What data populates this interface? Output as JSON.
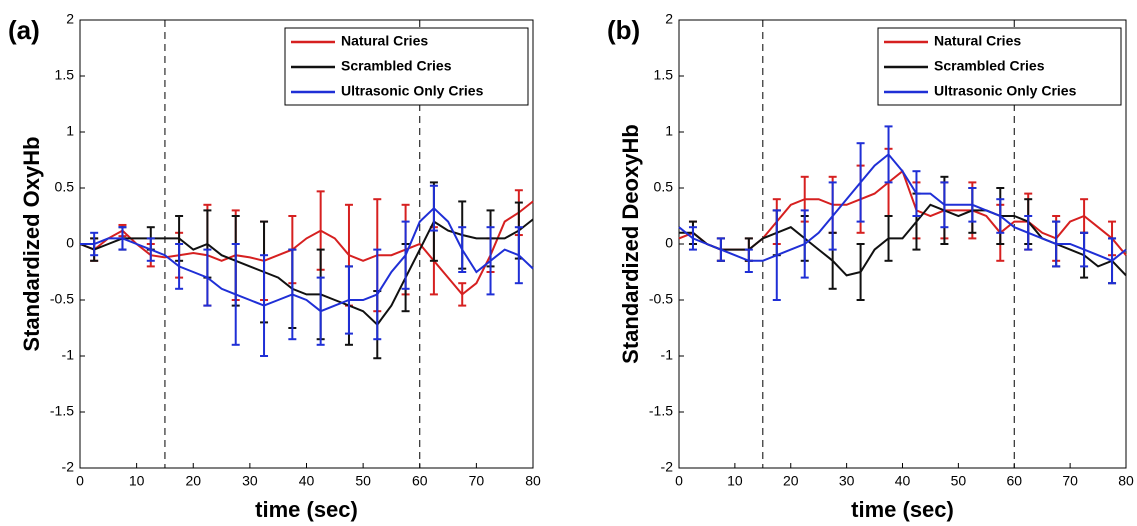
{
  "chart_data": [
    {
      "type": "line",
      "panel_label": "(a)",
      "xlabel": "time (sec)",
      "ylabel": "Standardized OxyHb",
      "xlim": [
        0,
        80
      ],
      "ylim": [
        -2,
        2
      ],
      "xticks": [
        0,
        10,
        20,
        30,
        40,
        50,
        60,
        70,
        80
      ],
      "yticks": [
        -2,
        -1.5,
        -1,
        -0.5,
        0,
        0.5,
        1,
        1.5,
        2
      ],
      "vlines": [
        15,
        60
      ],
      "legend": "upper right",
      "x": [
        0,
        2.5,
        5,
        7.5,
        10,
        12.5,
        15,
        17.5,
        20,
        22.5,
        25,
        27.5,
        30,
        32.5,
        35,
        37.5,
        40,
        42.5,
        45,
        47.5,
        50,
        52.5,
        55,
        57.5,
        60,
        62.5,
        65,
        67.5,
        70,
        72.5,
        75,
        77.5,
        80
      ],
      "series": [
        {
          "name": "Natural Cries",
          "color": "#d62020",
          "values": [
            0,
            -0.05,
            0.05,
            0.12,
            0,
            -0.1,
            -0.12,
            -0.1,
            -0.08,
            -0.1,
            -0.15,
            -0.1,
            -0.12,
            -0.15,
            -0.1,
            -0.05,
            0.05,
            0.12,
            0.05,
            -0.1,
            -0.15,
            -0.1,
            -0.1,
            -0.05,
            0,
            -0.15,
            -0.3,
            -0.45,
            -0.35,
            -0.1,
            0.2,
            0.28,
            0.38
          ],
          "errors": [
            null,
            0.1,
            null,
            0.05,
            null,
            0.1,
            null,
            0.2,
            null,
            0.45,
            null,
            0.4,
            null,
            0.35,
            null,
            0.3,
            null,
            0.35,
            null,
            0.45,
            null,
            0.5,
            null,
            0.4,
            null,
            0.3,
            null,
            0.1,
            null,
            0.15,
            null,
            0.2,
            null
          ]
        },
        {
          "name": "Scrambled Cries",
          "color": "#111111",
          "values": [
            0,
            -0.05,
            0,
            0.05,
            0.05,
            0.05,
            0.05,
            0.05,
            -0.05,
            0,
            -0.1,
            -0.15,
            -0.2,
            -0.25,
            -0.3,
            -0.4,
            -0.45,
            -0.45,
            -0.5,
            -0.55,
            -0.6,
            -0.72,
            -0.55,
            -0.3,
            -0.05,
            0.2,
            0.12,
            0.08,
            0.05,
            0.05,
            0.05,
            0.12,
            0.22
          ],
          "errors": [
            null,
            0.1,
            null,
            0.1,
            null,
            0.1,
            null,
            0.2,
            null,
            0.3,
            null,
            0.4,
            null,
            0.45,
            null,
            0.35,
            null,
            0.4,
            null,
            0.35,
            null,
            0.3,
            null,
            0.3,
            null,
            0.35,
            null,
            0.3,
            null,
            0.25,
            null,
            0.25,
            null
          ]
        },
        {
          "name": "Ultrasonic Only Cries",
          "color": "#1f2fd6",
          "values": [
            0,
            0,
            0.05,
            0.05,
            0,
            -0.05,
            -0.1,
            -0.2,
            -0.25,
            -0.3,
            -0.4,
            -0.45,
            -0.5,
            -0.55,
            -0.5,
            -0.45,
            -0.5,
            -0.6,
            -0.55,
            -0.5,
            -0.5,
            -0.45,
            -0.25,
            -0.1,
            0.2,
            0.32,
            0.2,
            -0.05,
            -0.25,
            -0.15,
            -0.05,
            -0.1,
            -0.22
          ],
          "errors": [
            null,
            0.1,
            null,
            0.1,
            null,
            0.1,
            null,
            0.2,
            null,
            0.25,
            null,
            0.45,
            null,
            0.45,
            null,
            0.4,
            null,
            0.3,
            null,
            0.3,
            null,
            0.4,
            null,
            0.3,
            null,
            0.2,
            null,
            0.2,
            null,
            0.3,
            null,
            0.25,
            null
          ]
        }
      ]
    },
    {
      "type": "line",
      "panel_label": "(b)",
      "xlabel": "time (sec)",
      "ylabel": "Standardized DeoxyHb",
      "xlim": [
        0,
        80
      ],
      "ylim": [
        -2,
        2
      ],
      "xticks": [
        0,
        10,
        20,
        30,
        40,
        50,
        60,
        70,
        80
      ],
      "yticks": [
        -2,
        -1.5,
        -1,
        -0.5,
        0,
        0.5,
        1,
        1.5,
        2
      ],
      "vlines": [
        15,
        60
      ],
      "legend": "upper right",
      "x": [
        0,
        2.5,
        5,
        7.5,
        10,
        12.5,
        15,
        17.5,
        20,
        22.5,
        25,
        27.5,
        30,
        32.5,
        35,
        37.5,
        40,
        42.5,
        45,
        47.5,
        50,
        52.5,
        55,
        57.5,
        60,
        62.5,
        65,
        67.5,
        70,
        72.5,
        75,
        77.5,
        80
      ],
      "series": [
        {
          "name": "Natural Cries",
          "color": "#d62020",
          "values": [
            0.05,
            0.1,
            0,
            -0.05,
            -0.05,
            -0.05,
            0.05,
            0.2,
            0.35,
            0.4,
            0.4,
            0.35,
            0.35,
            0.4,
            0.45,
            0.55,
            0.65,
            0.3,
            0.25,
            0.3,
            0.3,
            0.3,
            0.25,
            0.1,
            0.2,
            0.2,
            0.1,
            0.05,
            0.2,
            0.25,
            0.15,
            0.05,
            -0.1
          ],
          "errors": [
            null,
            0.1,
            null,
            0.1,
            null,
            0.1,
            null,
            0.2,
            null,
            0.2,
            null,
            0.25,
            null,
            0.3,
            null,
            0.3,
            null,
            0.25,
            null,
            0.25,
            null,
            0.25,
            null,
            0.25,
            null,
            0.25,
            null,
            0.2,
            null,
            0.15,
            null,
            0.15,
            null
          ]
        },
        {
          "name": "Scrambled Cries",
          "color": "#111111",
          "values": [
            0.1,
            0.1,
            0,
            -0.05,
            -0.05,
            -0.05,
            0.05,
            0.1,
            0.15,
            0.05,
            -0.05,
            -0.15,
            -0.28,
            -0.25,
            -0.05,
            0.05,
            0.05,
            0.2,
            0.35,
            0.3,
            0.25,
            0.3,
            0.3,
            0.25,
            0.25,
            0.2,
            0.05,
            0,
            -0.05,
            -0.1,
            -0.2,
            -0.15,
            -0.28
          ],
          "errors": [
            null,
            0.1,
            null,
            0.1,
            null,
            0.1,
            null,
            0.2,
            null,
            0.2,
            null,
            0.25,
            null,
            0.25,
            null,
            0.2,
            null,
            0.25,
            null,
            0.3,
            null,
            0.2,
            null,
            0.25,
            null,
            0.2,
            null,
            0.2,
            null,
            0.2,
            null,
            0.2,
            null
          ]
        },
        {
          "name": "Ultrasonic Only Cries",
          "color": "#1f2fd6",
          "values": [
            0.15,
            0.05,
            0,
            -0.05,
            -0.1,
            -0.15,
            -0.15,
            -0.1,
            -0.05,
            0,
            0.1,
            0.25,
            0.4,
            0.55,
            0.7,
            0.8,
            0.65,
            0.45,
            0.45,
            0.35,
            0.35,
            0.35,
            0.3,
            0.25,
            0.15,
            0.1,
            0.05,
            0,
            0,
            -0.05,
            -0.1,
            -0.15,
            -0.05
          ],
          "errors": [
            null,
            0.1,
            null,
            0.1,
            null,
            0.1,
            null,
            0.4,
            null,
            0.3,
            null,
            0.3,
            null,
            0.35,
            null,
            0.25,
            null,
            0.2,
            null,
            0.2,
            null,
            0.15,
            null,
            0.15,
            null,
            0.15,
            null,
            0.2,
            null,
            0.15,
            null,
            0.2,
            null
          ]
        }
      ]
    }
  ]
}
